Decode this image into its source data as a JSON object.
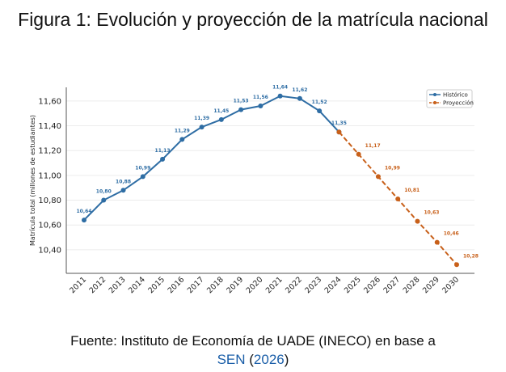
{
  "title": "Figura 1: Evolución y proyección de la matrícula nacional",
  "source": {
    "prefix": "Fuente: Instituto de Economía de UADE (INECO) en base a",
    "link": "SEN",
    "open": " (",
    "year": "2026",
    "close": ")"
  },
  "colors": {
    "historico": "#2e6da4",
    "proyeccion": "#c8601a",
    "link": "#1a5ea8"
  },
  "chart_data": {
    "type": "line",
    "ylabel": "Matrícula total (millones de estudiantes)",
    "xlabel": "",
    "ylim": [
      10.21,
      11.71
    ],
    "grid": "horizontal",
    "legend": "top-right",
    "yticks": [
      "10,40",
      "10,60",
      "10,80",
      "11,00",
      "11,20",
      "11,40",
      "11,60"
    ],
    "series": [
      {
        "name": "Histórico",
        "style": "solid",
        "x": [
          2011,
          2012,
          2013,
          2014,
          2015,
          2016,
          2017,
          2018,
          2019,
          2020,
          2021,
          2022,
          2023,
          2024
        ],
        "values": [
          10.64,
          10.8,
          10.88,
          10.99,
          11.13,
          11.29,
          11.39,
          11.45,
          11.53,
          11.56,
          11.64,
          11.62,
          11.52,
          11.35
        ],
        "labels": [
          "10,64",
          "10,80",
          "10,88",
          "10,99",
          "11,13",
          "11,29",
          "11,39",
          "11,45",
          "11,53",
          "11,56",
          "11,64",
          "11,62",
          "11,52",
          "11,35"
        ]
      },
      {
        "name": "Proyección",
        "style": "dashed",
        "x": [
          2024,
          2025,
          2026,
          2027,
          2028,
          2029,
          2030
        ],
        "values": [
          11.35,
          11.17,
          10.99,
          10.81,
          10.63,
          10.46,
          10.28
        ],
        "labels": [
          "",
          "11,17",
          "10,99",
          "10,81",
          "10,63",
          "10,46",
          "10,28"
        ]
      }
    ]
  }
}
